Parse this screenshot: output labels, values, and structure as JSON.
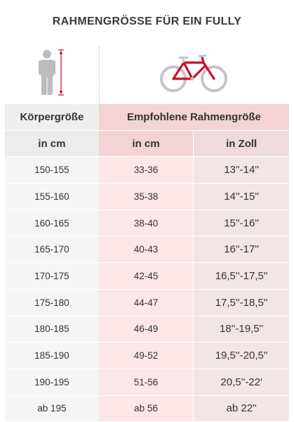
{
  "title": "RAHMENGRÖSSE FÜR EIN FULLY",
  "icons": {
    "person": "person-height-icon",
    "bike": "bicycle-frame-icon",
    "accent_color": "#c8102e",
    "gray_color": "#bcbcbc"
  },
  "table": {
    "header": {
      "col1": "Körpergröße",
      "col2": "Empfohlene Rahmengröße"
    },
    "subheader": {
      "col1": "in cm",
      "col2": "in cm",
      "col3": "in Zoll"
    },
    "rows": [
      {
        "height": "150-155",
        "cm": "33-36",
        "zoll": "13''-14''"
      },
      {
        "height": "155-160",
        "cm": "35-38",
        "zoll": "14''-15''"
      },
      {
        "height": "160-165",
        "cm": "38-40",
        "zoll": "15''-16''"
      },
      {
        "height": "165-170",
        "cm": "40-43",
        "zoll": "16''-17''"
      },
      {
        "height": "170-175",
        "cm": "42-45",
        "zoll": "16,5''-17,5''"
      },
      {
        "height": "175-180",
        "cm": "44-47",
        "zoll": "17,5''-18,5''"
      },
      {
        "height": "180-185",
        "cm": "46-49",
        "zoll": "18''-19,5''"
      },
      {
        "height": "185-190",
        "cm": "49-52",
        "zoll": "19,5''-20,5''"
      },
      {
        "height": "190-195",
        "cm": "51-56",
        "zoll": "20,5''-22'"
      },
      {
        "height": "ab 195",
        "cm": "ab 56",
        "zoll": "ab 22''"
      }
    ]
  }
}
